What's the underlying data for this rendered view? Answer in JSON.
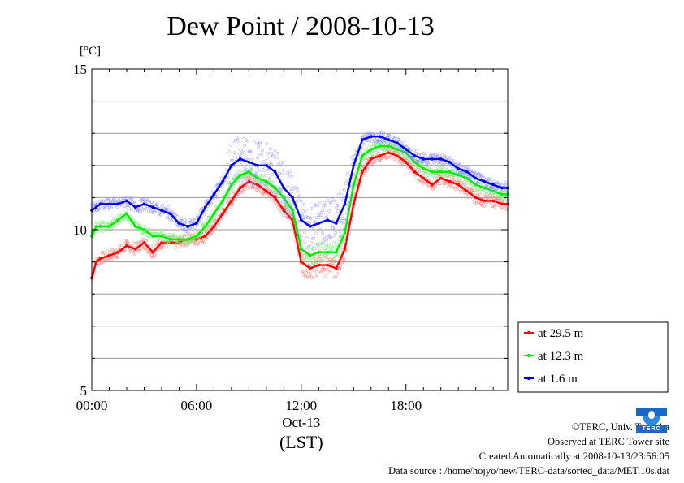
{
  "title": "Dew Point / 2008-10-13",
  "unit_label": "[°C]",
  "x_axis": {
    "ticks": [
      "00:00",
      "06:00",
      "12:00",
      "18:00"
    ],
    "date_label": "Oct-13",
    "timezone_label": "(LST)"
  },
  "credits": {
    "copyright": "©TERC, Univ. Tsukuba",
    "site": "Observed at TERC Tower site",
    "created": "Created Automatically at 2008-10-13/23:56:05",
    "source": "Data source : /home/hojyo/new/TERC-data/sorted_data/MET.10s.dat"
  },
  "logo_text": "TERC",
  "chart_data": {
    "type": "line",
    "title": "Dew Point / 2008-10-13",
    "ylabel": "[°C]",
    "xlabel": "Oct-13 (LST)",
    "xlim_hours": [
      0,
      23.83
    ],
    "ylim": [
      5,
      15
    ],
    "yticks": [
      5,
      10,
      15
    ],
    "xticks": [
      "00:00",
      "06:00",
      "12:00",
      "18:00"
    ],
    "grid": true,
    "legend_position": "bottom-right, outside plot",
    "x_hours": [
      0,
      0.25,
      0.5,
      1,
      1.5,
      2,
      2.5,
      3,
      3.5,
      4,
      4.5,
      5,
      5.5,
      6,
      6.5,
      7,
      7.5,
      8,
      8.5,
      9,
      9.5,
      10,
      10.5,
      11,
      11.5,
      12,
      12.5,
      13,
      13.5,
      14,
      14.5,
      15,
      15.5,
      16,
      16.5,
      17,
      17.5,
      18,
      18.5,
      19,
      19.5,
      20,
      20.5,
      21,
      21.5,
      22,
      22.5,
      23,
      23.5,
      23.83
    ],
    "series": [
      {
        "name": "at 29.5 m",
        "color": "#ff0000",
        "values": [
          8.5,
          9.0,
          9.1,
          9.2,
          9.3,
          9.5,
          9.4,
          9.6,
          9.3,
          9.6,
          9.6,
          9.6,
          9.7,
          9.7,
          9.8,
          10.1,
          10.5,
          10.9,
          11.3,
          11.5,
          11.4,
          11.2,
          11.0,
          10.6,
          10.3,
          9.0,
          8.8,
          8.9,
          8.9,
          8.8,
          9.4,
          10.8,
          11.8,
          12.2,
          12.3,
          12.4,
          12.3,
          12.1,
          11.8,
          11.6,
          11.4,
          11.6,
          11.5,
          11.4,
          11.2,
          11.0,
          10.9,
          10.9,
          10.8,
          10.8
        ]
      },
      {
        "name": "at 12.3 m",
        "color": "#00ee00",
        "values": [
          9.8,
          10.1,
          10.1,
          10.1,
          10.3,
          10.5,
          10.1,
          10.0,
          9.8,
          9.8,
          9.7,
          9.7,
          9.7,
          9.8,
          10.1,
          10.5,
          10.9,
          11.4,
          11.7,
          11.8,
          11.6,
          11.5,
          11.3,
          11.0,
          10.6,
          9.4,
          9.2,
          9.3,
          9.3,
          9.3,
          9.9,
          11.4,
          12.3,
          12.5,
          12.6,
          12.6,
          12.5,
          12.4,
          12.1,
          11.9,
          11.8,
          11.8,
          11.8,
          11.7,
          11.6,
          11.4,
          11.3,
          11.2,
          11.1,
          11.1
        ]
      },
      {
        "name": "at 1.6 m",
        "color": "#0000ee",
        "values": [
          10.6,
          10.7,
          10.8,
          10.8,
          10.8,
          10.9,
          10.7,
          10.8,
          10.7,
          10.6,
          10.5,
          10.2,
          10.1,
          10.2,
          10.7,
          11.1,
          11.5,
          12.0,
          12.2,
          12.1,
          12.0,
          12.0,
          11.8,
          11.3,
          11.0,
          10.3,
          10.1,
          10.2,
          10.3,
          10.2,
          10.8,
          12.0,
          12.8,
          12.9,
          12.9,
          12.8,
          12.7,
          12.5,
          12.3,
          12.2,
          12.2,
          12.2,
          12.1,
          11.9,
          11.8,
          11.6,
          11.5,
          11.4,
          11.3,
          11.3
        ]
      }
    ]
  }
}
